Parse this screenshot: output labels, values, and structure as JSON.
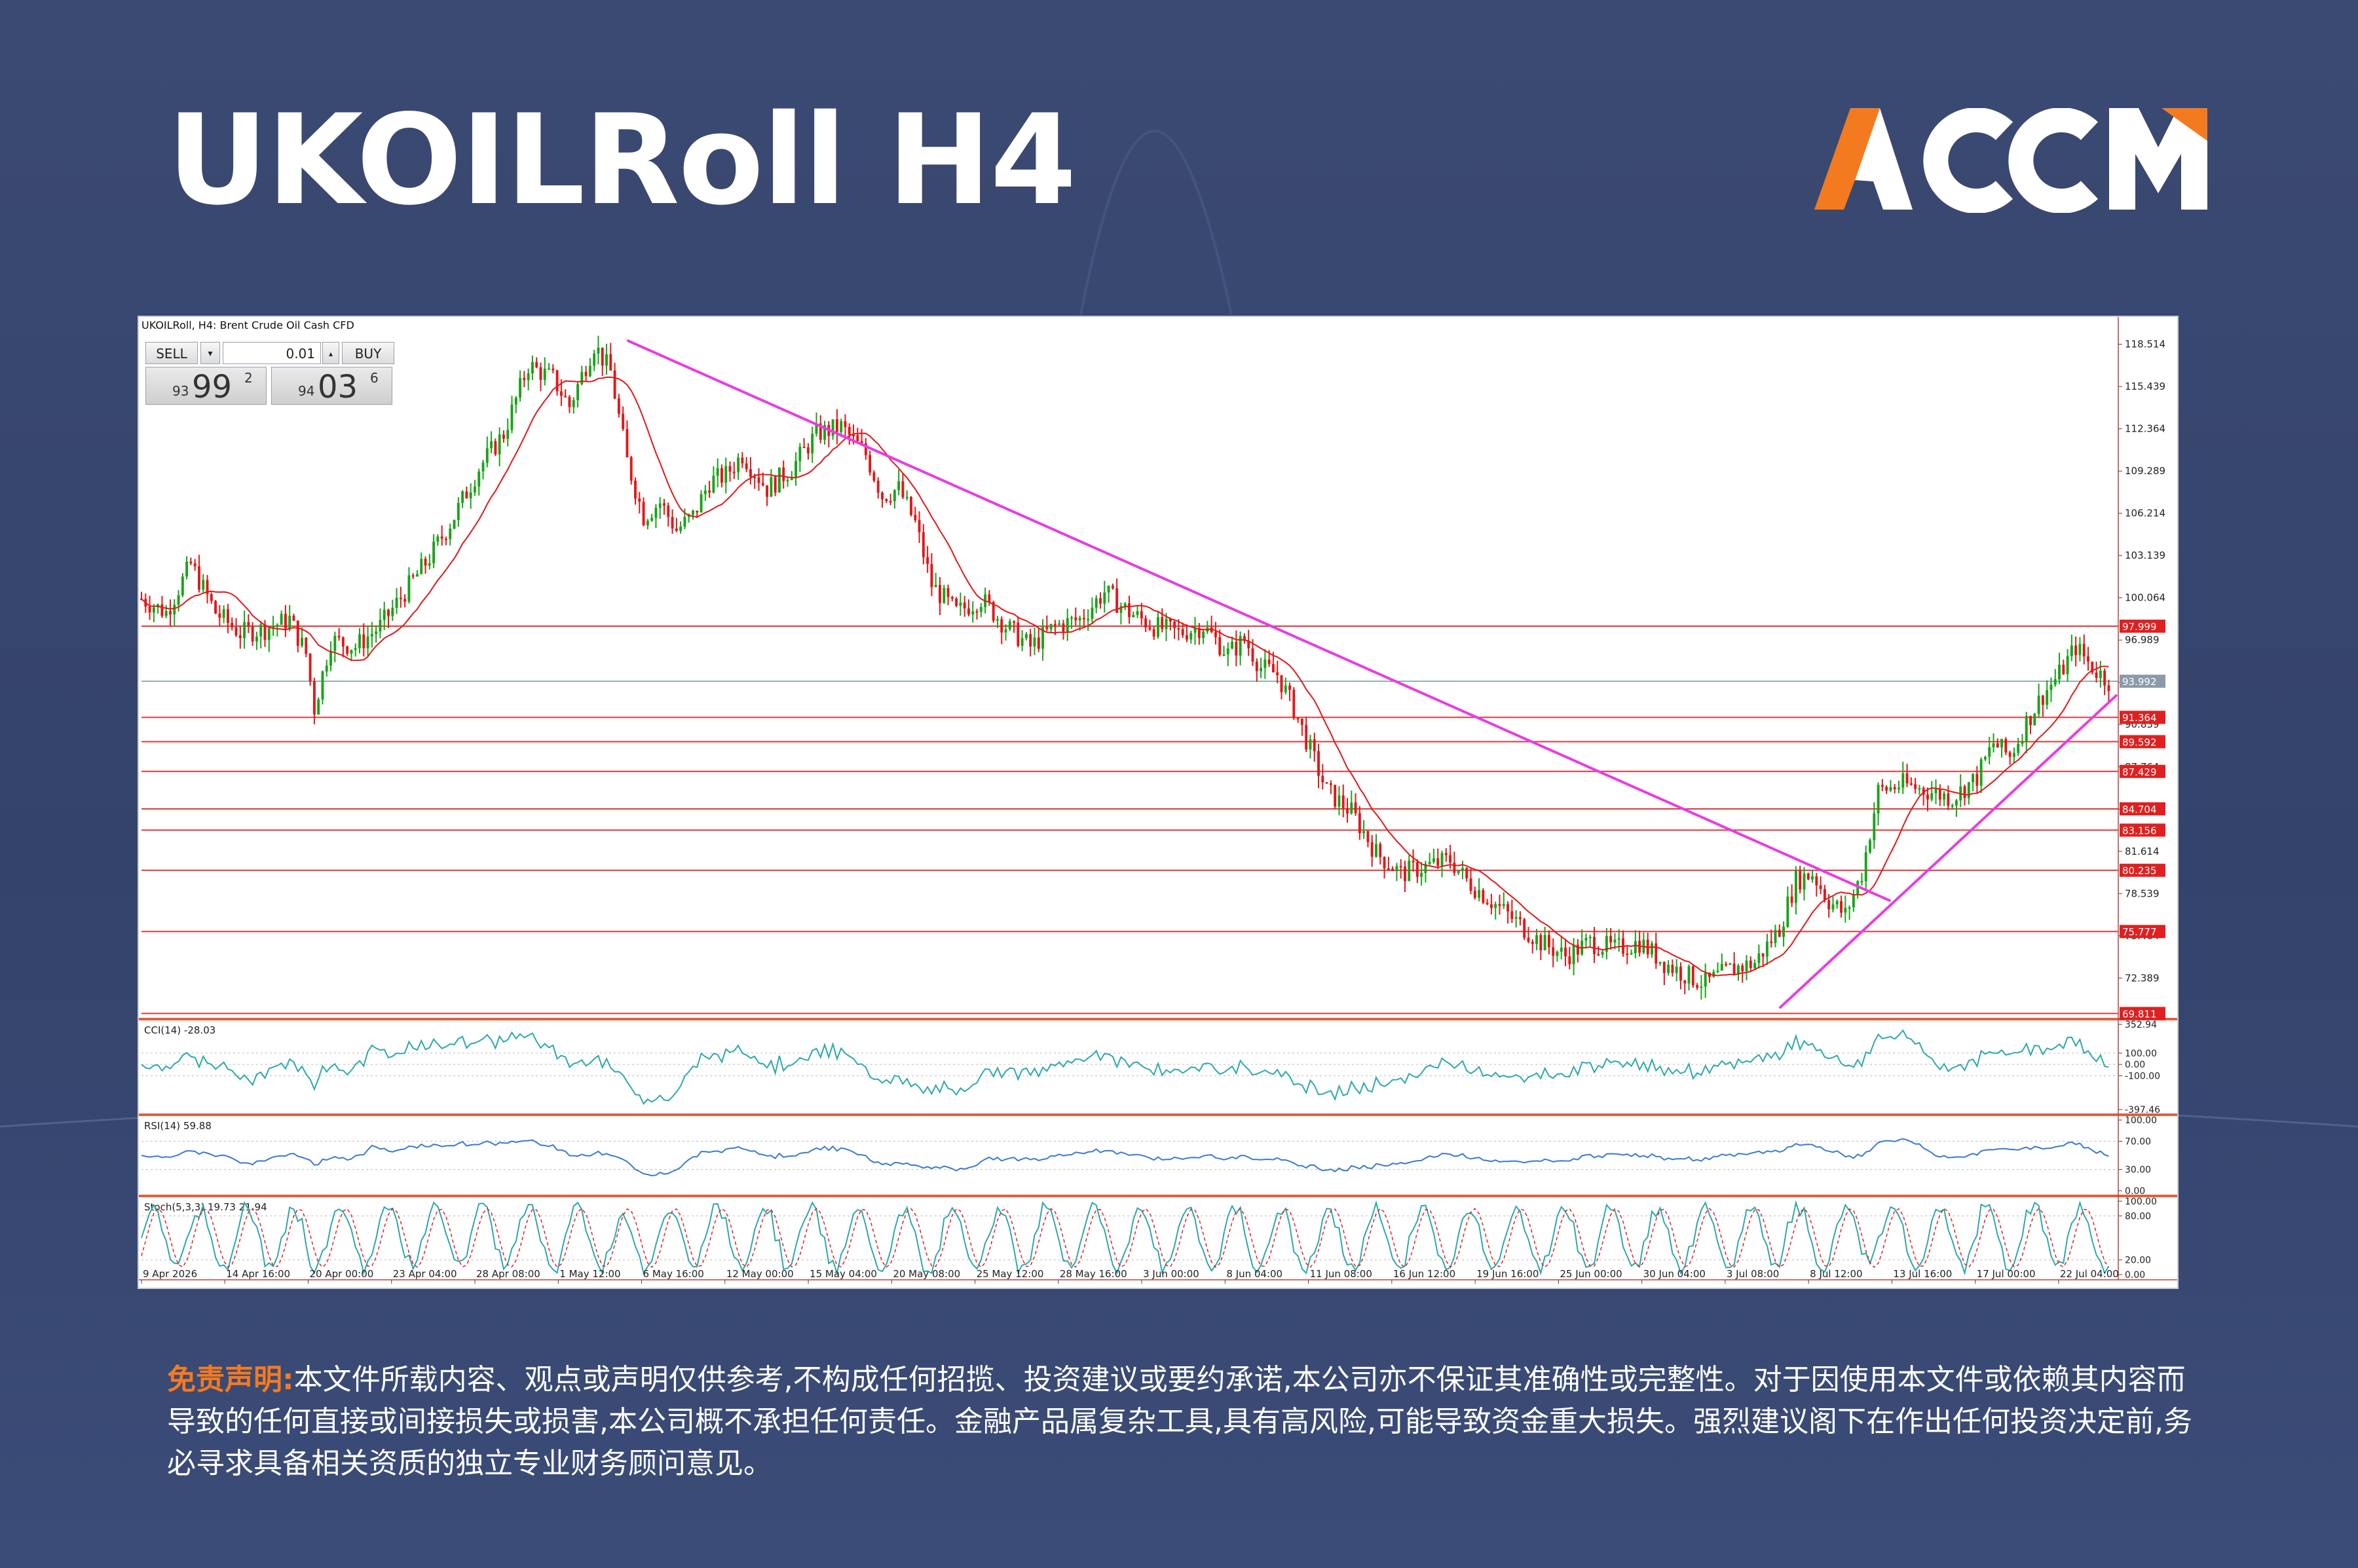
{
  "title": "UKOILRoll H4",
  "logo_text": "ACCM",
  "colors": {
    "background": "#3a4870",
    "brand_orange": "#f47a20",
    "brand_white": "#ffffff",
    "bull": "#1aa31a",
    "bear": "#e01818",
    "ma": "#e01818",
    "trendline": "#e63ee0",
    "hline": "#e03a3a",
    "indicator": "#2fa8a8"
  },
  "header": {
    "symbol_text": "UKOILRoll, H4: Brent Crude Oil Cash CFD"
  },
  "trade_panel": {
    "sell_label": "SELL",
    "buy_label": "BUY",
    "volume": "0.01",
    "sell_small": "93",
    "sell_big": "99",
    "sell_sup": "2",
    "buy_small": "94",
    "buy_big": "03",
    "buy_sup": "6"
  },
  "chart_data": [
    {
      "type": "candlestick",
      "symbol": "UKOILRoll",
      "timeframe": "H4",
      "ylim": [
        69.4,
        120.5
      ],
      "y_ticks": [
        "118.514",
        "115.439",
        "112.364",
        "109.289",
        "106.214",
        "103.139",
        "100.064",
        "96.989",
        "93.914",
        "90.839",
        "87.764",
        "84.689",
        "81.614",
        "78.539",
        "75.464",
        "72.389"
      ],
      "x_labels": [
        "9 Apr 2026",
        "14 Apr 16:00",
        "20 Apr 00:00",
        "23 Apr 04:00",
        "28 Apr 08:00",
        "1 May 12:00",
        "6 May 16:00",
        "12 May 00:00",
        "15 May 04:00",
        "20 May 08:00",
        "25 May 12:00",
        "28 May 16:00",
        "3 Jun 00:00",
        "8 Jun 04:00",
        "11 Jun 08:00",
        "16 Jun 12:00",
        "19 Jun 16:00",
        "25 Jun 00:00",
        "30 Jun 04:00",
        "3 Jul 08:00",
        "8 Jul 12:00",
        "13 Jul 16:00",
        "17 Jul 00:00",
        "22 Jul 04:00"
      ],
      "price_path": [
        [
          0,
          100.0
        ],
        [
          6,
          99.0
        ],
        [
          12,
          102.5
        ],
        [
          18,
          99.0
        ],
        [
          24,
          97.5
        ],
        [
          30,
          97.8
        ],
        [
          36,
          98.5
        ],
        [
          40,
          96.0
        ],
        [
          42,
          92.0
        ],
        [
          46,
          97.0
        ],
        [
          52,
          96.5
        ],
        [
          58,
          98.0
        ],
        [
          64,
          100.5
        ],
        [
          70,
          103.0
        ],
        [
          76,
          106.0
        ],
        [
          82,
          109.5
        ],
        [
          88,
          112.0
        ],
        [
          94,
          117.0
        ],
        [
          100,
          116.0
        ],
        [
          104,
          114.0
        ],
        [
          110,
          118.5
        ],
        [
          114,
          116.5
        ],
        [
          118,
          110.0
        ],
        [
          122,
          106.0
        ],
        [
          126,
          107.0
        ],
        [
          130,
          105.0
        ],
        [
          134,
          106.0
        ],
        [
          138,
          108.5
        ],
        [
          142,
          109.0
        ],
        [
          146,
          110.5
        ],
        [
          152,
          108.0
        ],
        [
          158,
          109.5
        ],
        [
          164,
          112.0
        ],
        [
          170,
          112.5
        ],
        [
          176,
          110.5
        ],
        [
          180,
          107.5
        ],
        [
          184,
          108.0
        ],
        [
          188,
          105.5
        ],
        [
          192,
          101.0
        ],
        [
          198,
          99.0
        ],
        [
          204,
          100.0
        ],
        [
          210,
          98.0
        ],
        [
          216,
          96.5
        ],
        [
          222,
          98.0
        ],
        [
          228,
          98.5
        ],
        [
          234,
          100.5
        ],
        [
          240,
          99.0
        ],
        [
          246,
          98.0
        ],
        [
          252,
          97.5
        ],
        [
          258,
          98.0
        ],
        [
          264,
          96.0
        ],
        [
          268,
          97.0
        ],
        [
          272,
          95.0
        ],
        [
          276,
          94.5
        ],
        [
          280,
          92.0
        ],
        [
          284,
          89.0
        ],
        [
          288,
          86.0
        ],
        [
          294,
          84.5
        ],
        [
          300,
          81.5
        ],
        [
          306,
          80.0
        ],
        [
          312,
          80.5
        ],
        [
          318,
          81.0
        ],
        [
          322,
          79.5
        ],
        [
          328,
          78.0
        ],
        [
          334,
          76.5
        ],
        [
          340,
          75.0
        ],
        [
          346,
          74.0
        ],
        [
          352,
          75.0
        ],
        [
          358,
          74.5
        ],
        [
          364,
          75.0
        ],
        [
          370,
          73.5
        ],
        [
          376,
          72.5
        ],
        [
          380,
          72.0
        ],
        [
          386,
          73.0
        ],
        [
          392,
          73.5
        ],
        [
          398,
          76.0
        ],
        [
          402,
          79.5
        ],
        [
          406,
          80.0
        ],
        [
          410,
          78.0
        ],
        [
          414,
          77.0
        ],
        [
          418,
          80.0
        ],
        [
          422,
          86.0
        ],
        [
          428,
          86.5
        ],
        [
          434,
          86.0
        ],
        [
          440,
          85.5
        ],
        [
          446,
          87.0
        ],
        [
          450,
          89.5
        ],
        [
          454,
          88.5
        ],
        [
          458,
          91.0
        ],
        [
          462,
          93.0
        ],
        [
          466,
          94.5
        ],
        [
          470,
          96.5
        ],
        [
          474,
          95.0
        ],
        [
          478,
          94.0
        ]
      ],
      "horizontal_levels": [
        "97.999",
        "93.992",
        "91.364",
        "89.592",
        "87.429",
        "84.704",
        "83.156",
        "80.235",
        "75.777",
        "69.811"
      ],
      "current_price": "93.992",
      "trendlines": [
        {
          "name": "down-trendline",
          "from": [
            118,
            118.8
          ],
          "to": [
            425,
            78.0
          ]
        },
        {
          "name": "up-trendline",
          "from": [
            398,
            70.2
          ],
          "to": [
            480,
            93.0
          ]
        }
      ],
      "moving_average": "red line"
    },
    {
      "type": "line",
      "title": "CCI(14) -28.03",
      "y_ticks": [
        "352.94",
        "100.00",
        "0.00",
        "-100.00",
        "-397.46"
      ],
      "ylim": [
        -397.46,
        352.94
      ]
    },
    {
      "type": "line",
      "title": "RSI(14) 59.88",
      "y_ticks": [
        "100.00",
        "70.00",
        "30.00",
        "0.00"
      ],
      "ylim": [
        0,
        100
      ]
    },
    {
      "type": "line",
      "title": "Stoch(5,3,3) 19.73 21.94",
      "y_ticks": [
        "100.00",
        "80.00",
        "20.00",
        "0.00"
      ],
      "ylim": [
        0,
        100
      ]
    }
  ],
  "disclaimer": {
    "lead": "免责声明:",
    "text": "本文件所载内容、观点或声明仅供参考,不构成任何招揽、投资建议或要约承诺,本公司亦不保证其准确性或完整性。对于因使用本文件或依赖其内容而导致的任何直接或间接损失或损害,本公司概不承担任何责任。金融产品属复杂工具,具有高风险,可能导致资金重大损失。强烈建议阁下在作出任何投资决定前,务必寻求具备相关资质的独立专业财务顾问意见。"
  }
}
